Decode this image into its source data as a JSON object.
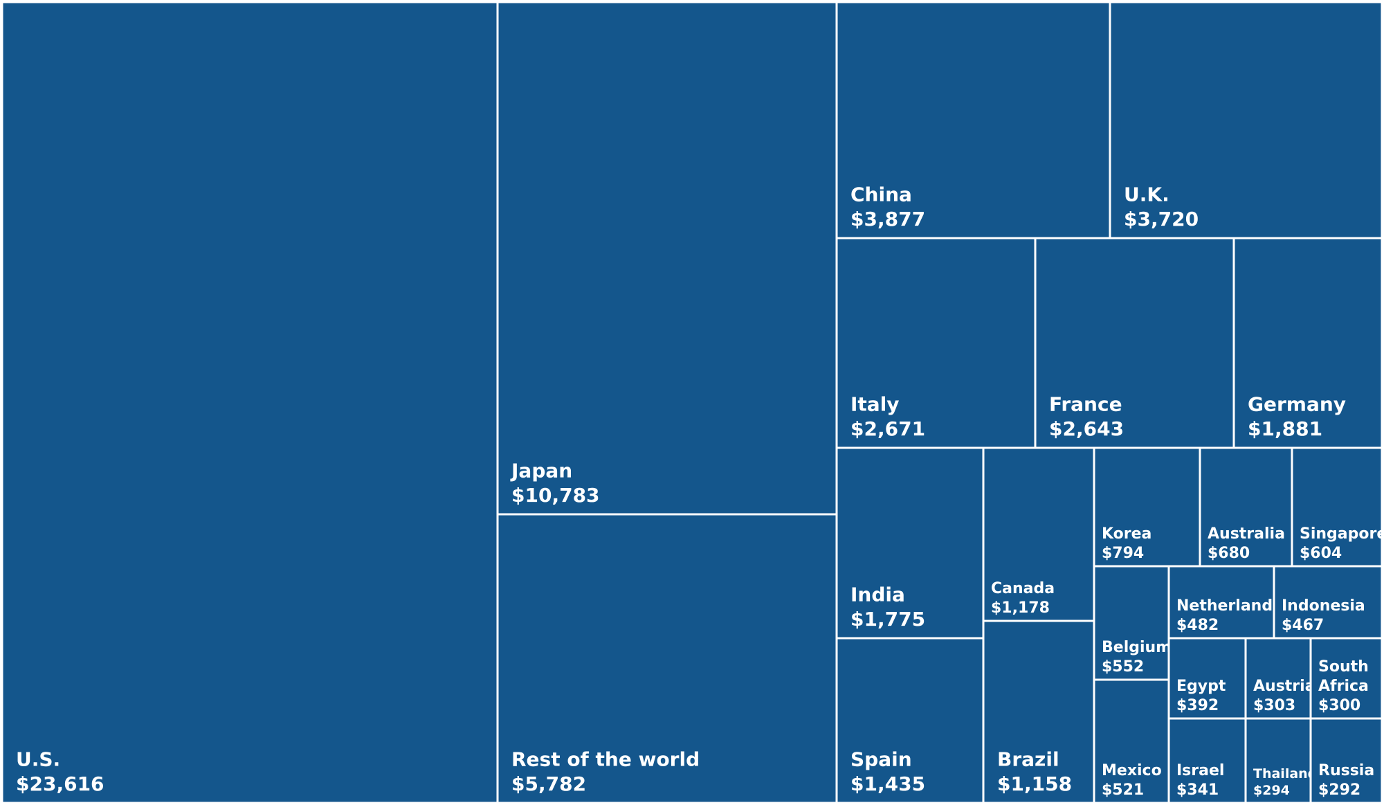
{
  "chart_data": {
    "type": "treemap",
    "fill_color": "#14568c",
    "border_color": "#ffffff",
    "text_color": "#ffffff",
    "items": [
      {
        "name": "U.S.",
        "value": 23616,
        "label": "$23,616"
      },
      {
        "name": "Japan",
        "value": 10783,
        "label": "$10,783"
      },
      {
        "name": "Rest of the world",
        "value": 5782,
        "label": "$5,782"
      },
      {
        "name": "China",
        "value": 3877,
        "label": "$3,877"
      },
      {
        "name": "U.K.",
        "value": 3720,
        "label": "$3,720"
      },
      {
        "name": "Italy",
        "value": 2671,
        "label": "$2,671"
      },
      {
        "name": "France",
        "value": 2643,
        "label": "$2,643"
      },
      {
        "name": "Germany",
        "value": 1881,
        "label": "$1,881"
      },
      {
        "name": "India",
        "value": 1775,
        "label": "$1,775"
      },
      {
        "name": "Spain",
        "value": 1435,
        "label": "$1,435"
      },
      {
        "name": "Canada",
        "value": 1178,
        "label": "$1,178"
      },
      {
        "name": "Brazil",
        "value": 1158,
        "label": "$1,158"
      },
      {
        "name": "Korea",
        "value": 794,
        "label": "$794"
      },
      {
        "name": "Australia",
        "value": 680,
        "label": "$680"
      },
      {
        "name": "Singapore",
        "value": 604,
        "label": "$604"
      },
      {
        "name": "Belgium",
        "value": 552,
        "label": "$552"
      },
      {
        "name": "Mexico",
        "value": 521,
        "label": "$521"
      },
      {
        "name": "Netherlands",
        "value": 482,
        "label": "$482"
      },
      {
        "name": "Indonesia",
        "value": 467,
        "label": "$467"
      },
      {
        "name": "Egypt",
        "value": 392,
        "label": "$392"
      },
      {
        "name": "Austria",
        "value": 303,
        "label": "$303"
      },
      {
        "name": "South Africa",
        "value": 300,
        "label": "$300"
      },
      {
        "name": "Israel",
        "value": 341,
        "label": "$341"
      },
      {
        "name": "Thailand",
        "value": 294,
        "label": "$294"
      },
      {
        "name": "Russia",
        "value": 292,
        "label": "$292"
      }
    ]
  }
}
